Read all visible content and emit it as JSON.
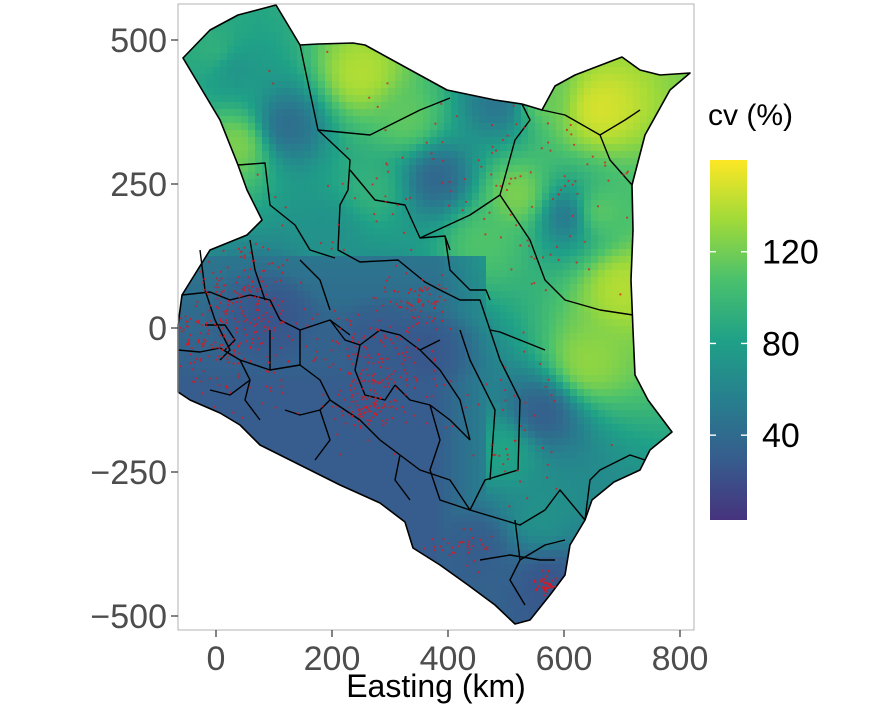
{
  "map": {
    "x_axis": {
      "title": "Easting (km)",
      "ticks": [
        "0",
        "200",
        "400",
        "600",
        "800"
      ],
      "tick_values": [
        0,
        200,
        400,
        600,
        800
      ],
      "range": [
        -65,
        820
      ]
    },
    "y_axis": {
      "title": "",
      "ticks": [
        "500",
        "250",
        "0",
        "−250",
        "−500"
      ],
      "tick_values": [
        500,
        250,
        0,
        -250,
        -500
      ],
      "range": [
        -520,
        560
      ]
    },
    "legend": {
      "title": "cv (%)",
      "labels": [
        "120",
        "80",
        "40"
      ],
      "values": [
        120,
        80,
        40
      ],
      "range": [
        3,
        160
      ],
      "placement": "right",
      "colors": [
        "#46337e",
        "#365c8d",
        "#277f8e",
        "#1fa187",
        "#4ac16d",
        "#a0da39",
        "#fde725"
      ]
    },
    "colors": {
      "boundary": "#000000",
      "points": "#e4141c",
      "panel_border": "#b3b3b3"
    },
    "hotspots": [
      {
        "x": 660,
        "y": 380,
        "cv": 150
      },
      {
        "x": 250,
        "y": 440,
        "cv": 140
      },
      {
        "x": 520,
        "y": 230,
        "cv": 125
      },
      {
        "x": 650,
        "y": 200,
        "cv": 120
      },
      {
        "x": 700,
        "y": 70,
        "cv": 140
      },
      {
        "x": 640,
        "y": -60,
        "cv": 130
      },
      {
        "x": 40,
        "y": 320,
        "cv": 125
      },
      {
        "x": 10,
        "y": 470,
        "cv": 110
      },
      {
        "x": 330,
        "y": 360,
        "cv": 115
      },
      {
        "x": 460,
        "y": 150,
        "cv": 110
      },
      {
        "x": 560,
        "y": 400,
        "cv": 120
      },
      {
        "x": 270,
        "y": 240,
        "cv": 95
      },
      {
        "x": 500,
        "y": -210,
        "cv": 85
      },
      {
        "x": 560,
        "y": -330,
        "cv": 70
      },
      {
        "x": 200,
        "y": 170,
        "cv": 70
      }
    ],
    "coldspots": [
      {
        "x": 120,
        "y": 350,
        "cv": 40
      },
      {
        "x": 380,
        "y": 260,
        "cv": 35
      },
      {
        "x": 610,
        "y": 195,
        "cv": 40
      },
      {
        "x": 490,
        "y": 390,
        "cv": 45
      },
      {
        "x": 100,
        "y": 20,
        "cv": 25
      },
      {
        "x": 280,
        "y": -20,
        "cv": 28
      },
      {
        "x": 360,
        "y": -40,
        "cv": 25
      },
      {
        "x": 560,
        "y": -150,
        "cv": 30
      },
      {
        "x": 450,
        "y": -380,
        "cv": 30
      },
      {
        "x": 570,
        "y": -440,
        "cv": 25
      },
      {
        "x": 150,
        "y": -150,
        "cv": 35
      },
      {
        "x": 20,
        "y": 460,
        "cv": 55
      },
      {
        "x": 230,
        "y": -320,
        "cv": 30
      }
    ]
  }
}
